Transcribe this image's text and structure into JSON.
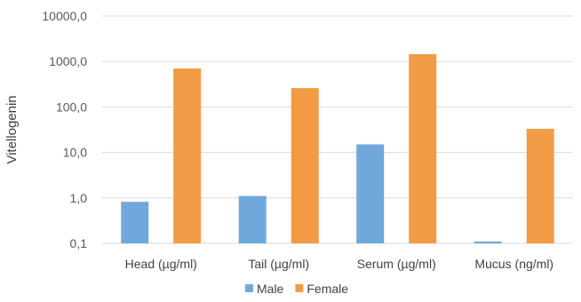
{
  "chart_data": {
    "type": "bar",
    "ylabel": "Vitellogenin",
    "xlabel": "",
    "yscale": "log",
    "ylim": [
      0.1,
      10000
    ],
    "yticks": [
      "0,1",
      "1,0",
      "10,0",
      "100,0",
      "1000,0",
      "10000,0"
    ],
    "grid": true,
    "legend_position": "bottom",
    "categories": [
      "Head (µg/ml)",
      "Tail (µg/ml)",
      "Serum (µg/ml)",
      "Mucus (ng/ml)"
    ],
    "series": [
      {
        "name": "Male",
        "color": "#6fa8dc",
        "values": [
          0.82,
          1.1,
          15,
          0.11
        ]
      },
      {
        "name": "Female",
        "color": "#f39a45",
        "values": [
          700,
          260,
          1450,
          33
        ]
      }
    ]
  }
}
